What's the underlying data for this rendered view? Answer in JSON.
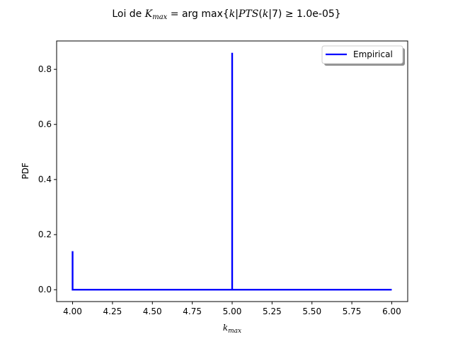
{
  "figure": {
    "title_prefix": "Loi de ",
    "title_var": "K",
    "title_var_sub": "max",
    "title_mid": " = arg max{",
    "title_k": "k",
    "title_bar1": "|",
    "title_pts": "PTS",
    "title_paren": "(",
    "title_k2": "k",
    "title_bar2": "|7) ≥ 1.0e-05}"
  },
  "chart_data": {
    "type": "line",
    "xlabel_main": "k",
    "xlabel_sub": "max",
    "ylabel": "PDF",
    "xlim": [
      3.9,
      6.1
    ],
    "ylim": [
      -0.043,
      0.903
    ],
    "xticks": [
      4.0,
      4.25,
      4.5,
      4.75,
      5.0,
      5.25,
      5.5,
      5.75,
      6.0
    ],
    "xtick_labels": [
      "4.00",
      "4.25",
      "4.50",
      "4.75",
      "5.00",
      "5.25",
      "5.50",
      "5.75",
      "6.00"
    ],
    "yticks": [
      0.0,
      0.2,
      0.4,
      0.6,
      0.8
    ],
    "ytick_labels": [
      "0.0",
      "0.2",
      "0.4",
      "0.6",
      "0.8"
    ],
    "grid": false,
    "legend_position": "upper right",
    "series": [
      {
        "name": "Empirical",
        "color": "#0000ff",
        "x": [
          4.0,
          4.0,
          5.0,
          5.0,
          5.0,
          6.0
        ],
        "y": [
          0.14,
          0.0,
          0.0,
          0.86,
          0.0,
          0.0
        ]
      }
    ]
  }
}
